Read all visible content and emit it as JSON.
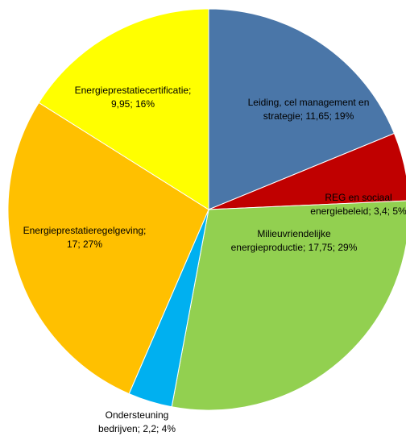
{
  "chart_data": {
    "type": "pie",
    "values": [
      11.65,
      3.4,
      17.75,
      2.2,
      17,
      9.95
    ],
    "value_labels": [
      [
        "Leiding, cel management en",
        "strategie; 11,65; 19%"
      ],
      [
        "REG en sociaal",
        "energiebeleid; 3,4; 5%"
      ],
      [
        "Milieuvriendelijke",
        "energieproductie; 17,75; 29%"
      ],
      [
        "Ondersteuning",
        "bedrijven; 2,2; 4%"
      ],
      [
        "Energieprestatieregelgeving;",
        "17; 27%"
      ],
      [
        "Energieprestatiecertificatie;",
        "9,95; 16%"
      ]
    ],
    "colors": [
      "#4a76a8",
      "#c00000",
      "#92d050",
      "#00b0f0",
      "#ffc000",
      "#ffff00"
    ]
  }
}
